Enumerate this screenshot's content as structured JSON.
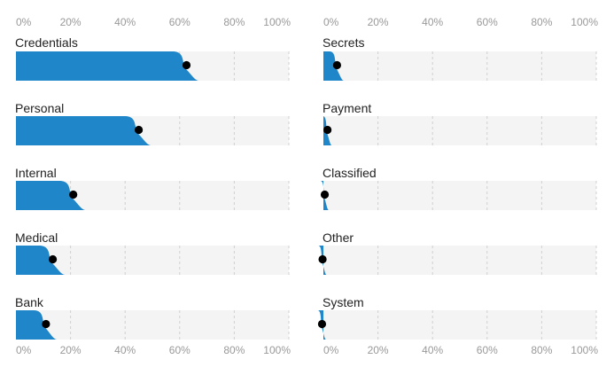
{
  "chart_data": {
    "type": "bar",
    "xlim": [
      0,
      100
    ],
    "tick_labels": [
      "0%",
      "20%",
      "40%",
      "60%",
      "80%",
      "100%"
    ],
    "grid": true,
    "colors": {
      "fill": "#1f87c9",
      "track": "#f4f4f4",
      "marker": "#000000",
      "grid": "#d0d0d0"
    },
    "panels": [
      {
        "categories": [
          "Credentials",
          "Personal",
          "Internal",
          "Medical",
          "Bank"
        ],
        "values": [
          62.5,
          45,
          21,
          13.5,
          11
        ]
      },
      {
        "categories": [
          "Secrets",
          "Payment",
          "Classified",
          "Other",
          "System"
        ],
        "values": [
          5,
          1.5,
          0.5,
          -0.3,
          -0.5
        ]
      }
    ]
  }
}
